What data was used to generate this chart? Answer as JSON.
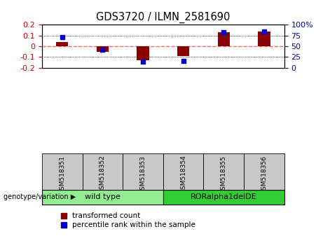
{
  "title": "GDS3720 / ILMN_2581690",
  "samples": [
    "GSM518351",
    "GSM518352",
    "GSM518353",
    "GSM518354",
    "GSM518355",
    "GSM518356"
  ],
  "bar_values": [
    0.04,
    -0.05,
    -0.13,
    -0.09,
    0.13,
    0.14
  ],
  "percentile_values": [
    72,
    42,
    15,
    16,
    82,
    85
  ],
  "ylim_left": [
    -0.2,
    0.2
  ],
  "ylim_right": [
    0,
    100
  ],
  "yticks_left": [
    -0.2,
    -0.1,
    0,
    0.1,
    0.2
  ],
  "yticks_left_labels": [
    "-0.2",
    "-0.1",
    "0",
    "0.1",
    "0.2"
  ],
  "yticks_right": [
    0,
    25,
    50,
    75,
    100
  ],
  "yticks_right_labels": [
    "0",
    "25",
    "50",
    "75",
    "100%"
  ],
  "bar_color": "#8B0000",
  "dot_color": "#0000CD",
  "bar_width": 0.3,
  "genotype_groups": [
    {
      "label": "wild type",
      "indices": [
        0,
        1,
        2
      ],
      "color": "#90EE90"
    },
    {
      "label": "RORalpha1delDE",
      "indices": [
        3,
        4,
        5
      ],
      "color": "#32CD32"
    }
  ],
  "legend_bar_label": "transformed count",
  "legend_dot_label": "percentile rank within the sample",
  "genotype_label": "genotype/variation",
  "background_color": "#ffffff",
  "zero_line_color": "#FF6666",
  "tick_label_color_left": "#CC0000",
  "tick_label_color_right": "#0000CC",
  "sample_cell_color": "#C8C8C8"
}
